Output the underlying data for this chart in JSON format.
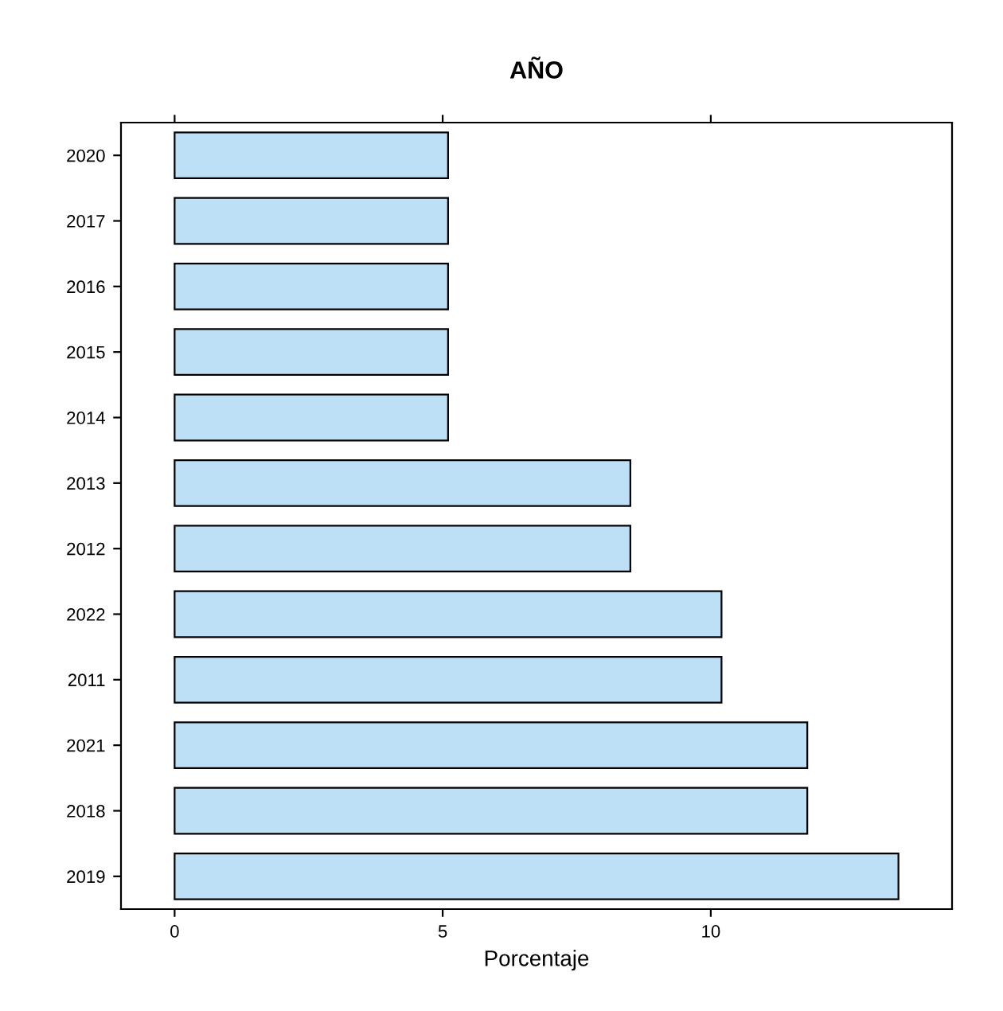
{
  "chart_data": {
    "type": "bar",
    "orientation": "horizontal",
    "title": "AÑO",
    "xlabel": "Porcentaje",
    "categories": [
      "2020",
      "2017",
      "2016",
      "2015",
      "2014",
      "2013",
      "2012",
      "2022",
      "2011",
      "2021",
      "2018",
      "2019"
    ],
    "values": [
      5.1,
      5.1,
      5.1,
      5.1,
      5.1,
      8.5,
      8.5,
      10.2,
      10.2,
      11.8,
      11.8,
      13.5
    ],
    "color": "#bde0f6",
    "xlim": [
      -1,
      14.5
    ],
    "xticks": [
      0,
      5,
      10
    ],
    "grid": false
  }
}
